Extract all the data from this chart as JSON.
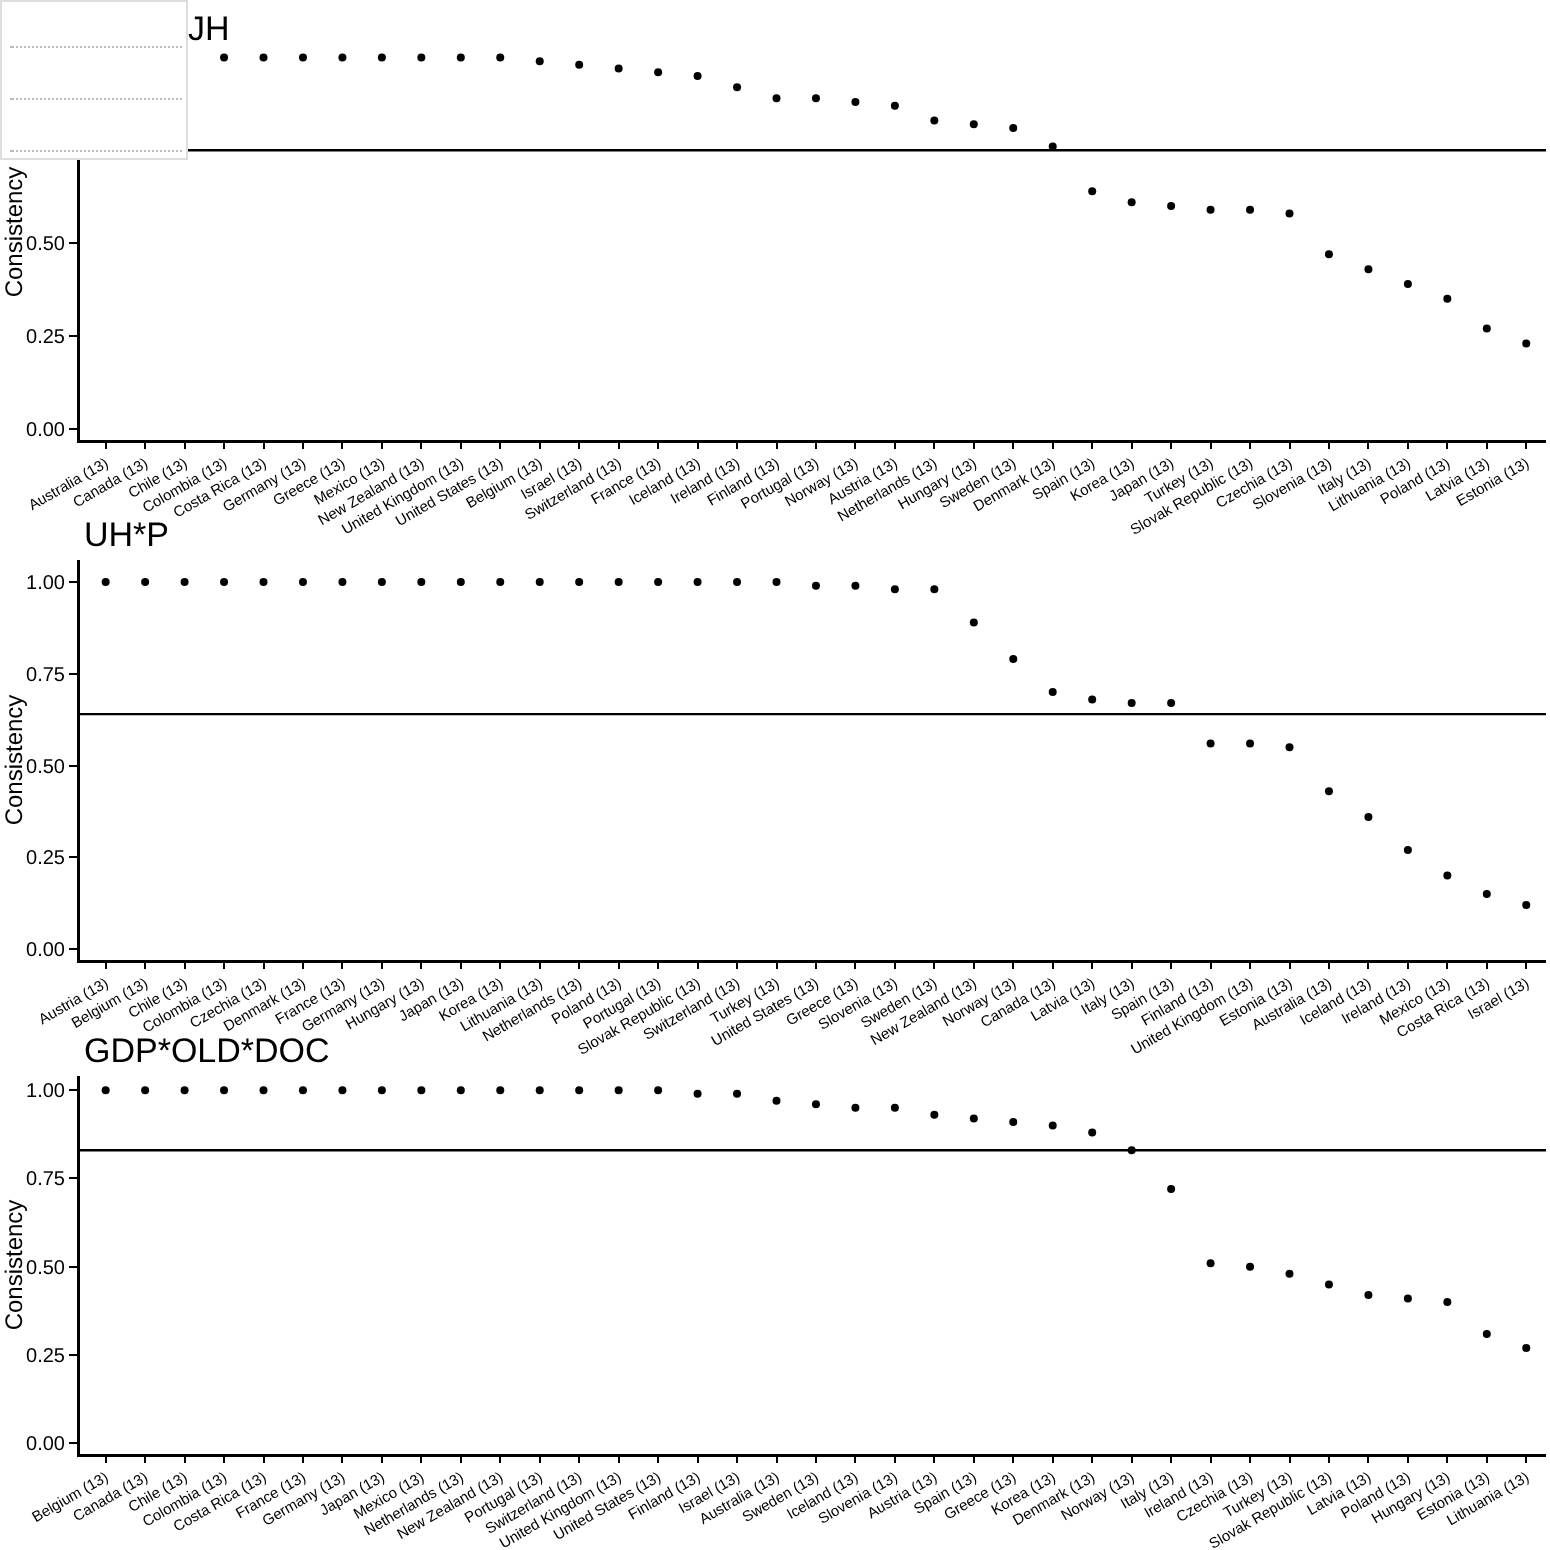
{
  "chart_data": [
    {
      "type": "scatter",
      "title": "JH",
      "ylabel": "Consistency",
      "marker": "circle",
      "grid": false,
      "categories": [
        "Australia (13)",
        "Canada (13)",
        "Chile (13)",
        "Colombia (13)",
        "Costa Rica (13)",
        "Germany (13)",
        "Greece (13)",
        "Mexico (13)",
        "New Zealand (13)",
        "United Kingdom (13)",
        "United States (13)",
        "Belgium (13)",
        "Israel (13)",
        "Switzerland (13)",
        "France (13)",
        "Iceland (13)",
        "Ireland (13)",
        "Finland (13)",
        "Portugal (13)",
        "Norway (13)",
        "Austria (13)",
        "Netherlands (13)",
        "Hungary (13)",
        "Sweden (13)",
        "Denmark (13)",
        "Spain (13)",
        "Korea (13)",
        "Japan (13)",
        "Turkey (13)",
        "Slovak Republic (13)",
        "Czechia (13)",
        "Slovenia (13)",
        "Italy (13)",
        "Lithuania (13)",
        "Poland (13)",
        "Latvia (13)",
        "Estonia (13)"
      ],
      "series": [
        {
          "color": "#000000",
          "values": [
            null,
            null,
            null,
            1.0,
            1.0,
            1.0,
            1.0,
            1.0,
            1.0,
            1.0,
            1.0,
            0.99,
            0.98,
            0.97,
            0.96,
            0.95,
            0.92,
            0.89,
            0.89,
            0.88,
            0.87,
            0.83,
            0.82,
            0.81,
            0.76,
            0.64,
            0.61,
            0.6,
            0.59,
            0.59,
            0.58,
            0.47,
            0.43,
            0.39,
            0.35,
            0.27,
            0.23
          ]
        }
      ],
      "ylim": [
        -0.03,
        1.09
      ],
      "yticks": [
        {
          "value": 0,
          "label": "0.00"
        },
        {
          "value": 0.25,
          "label": "0.25"
        },
        {
          "value": 0.5,
          "label": "0.50"
        }
      ],
      "ref_lines": [
        {
          "axis": "y",
          "value": 0.75,
          "color": "#000000"
        }
      ]
    },
    {
      "type": "scatter",
      "title": "UH*P",
      "ylabel": "Consistency",
      "marker": "circle",
      "grid": false,
      "categories": [
        "Austria (13)",
        "Belgium (13)",
        "Chile (13)",
        "Colombia (13)",
        "Czechia (13)",
        "Denmark (13)",
        "France (13)",
        "Germany (13)",
        "Hungary (13)",
        "Japan (13)",
        "Korea (13)",
        "Lithuania (13)",
        "Netherlands (13)",
        "Poland (13)",
        "Portugal (13)",
        "Slovak Republic (13)",
        "Switzerland (13)",
        "Turkey (13)",
        "United States (13)",
        "Greece (13)",
        "Slovenia (13)",
        "Sweden (13)",
        "New Zealand (13)",
        "Norway (13)",
        "Canada (13)",
        "Latvia (13)",
        "Italy (13)",
        "Spain (13)",
        "Finland (13)",
        "United Kingdom (13)",
        "Estonia (13)",
        "Australia (13)",
        "Iceland (13)",
        "Ireland (13)",
        "Mexico (13)",
        "Costa Rica (13)",
        "Israel (13)"
      ],
      "series": [
        {
          "color": "#000000",
          "values": [
            1.0,
            1.0,
            1.0,
            1.0,
            1.0,
            1.0,
            1.0,
            1.0,
            1.0,
            1.0,
            1.0,
            1.0,
            1.0,
            1.0,
            1.0,
            1.0,
            1.0,
            1.0,
            0.99,
            0.99,
            0.98,
            0.98,
            0.89,
            0.79,
            0.7,
            0.68,
            0.67,
            0.67,
            0.56,
            0.56,
            0.55,
            0.43,
            0.36,
            0.27,
            0.2,
            0.15,
            0.12
          ]
        }
      ],
      "ylim": [
        -0.03,
        1.06
      ],
      "yticks": [
        {
          "value": 0,
          "label": "0.00"
        },
        {
          "value": 0.25,
          "label": "0.25"
        },
        {
          "value": 0.5,
          "label": "0.50"
        },
        {
          "value": 0.75,
          "label": "0.75"
        },
        {
          "value": 1,
          "label": "1.00"
        }
      ],
      "ref_lines": [
        {
          "axis": "y",
          "value": 0.64,
          "color": "#000000"
        }
      ]
    },
    {
      "type": "scatter",
      "title": "GDP*OLD*DOC",
      "ylabel": "Consistency",
      "marker": "circle",
      "grid": false,
      "categories": [
        "Belgium (13)",
        "Canada (13)",
        "Chile (13)",
        "Colombia (13)",
        "Costa Rica (13)",
        "France (13)",
        "Germany (13)",
        "Japan (13)",
        "Mexico (13)",
        "Netherlands (13)",
        "New Zealand (13)",
        "Portugal (13)",
        "Switzerland (13)",
        "United Kingdom (13)",
        "United States (13)",
        "Finland (13)",
        "Israel (13)",
        "Australia (13)",
        "Sweden (13)",
        "Iceland (13)",
        "Slovenia (13)",
        "Austria (13)",
        "Spain (13)",
        "Greece (13)",
        "Korea (13)",
        "Denmark (13)",
        "Norway (13)",
        "Italy (13)",
        "Ireland (13)",
        "Czechia (13)",
        "Turkey (13)",
        "Slovak Republic (13)",
        "Latvia (13)",
        "Poland (13)",
        "Hungary (13)",
        "Estonia (13)",
        "Lithuania (13)"
      ],
      "series": [
        {
          "color": "#000000",
          "values": [
            1.0,
            1.0,
            1.0,
            1.0,
            1.0,
            1.0,
            1.0,
            1.0,
            1.0,
            1.0,
            1.0,
            1.0,
            1.0,
            1.0,
            1.0,
            0.99,
            0.99,
            0.97,
            0.96,
            0.95,
            0.95,
            0.93,
            0.92,
            0.91,
            0.9,
            0.88,
            0.83,
            0.72,
            0.51,
            0.5,
            0.48,
            0.45,
            0.42,
            0.41,
            0.4,
            0.31,
            0.27
          ]
        }
      ],
      "ylim": [
        -0.03,
        1.04
      ],
      "yticks": [
        {
          "value": 0,
          "label": "0.00"
        },
        {
          "value": 0.25,
          "label": "0.25"
        },
        {
          "value": 0.5,
          "label": "0.50"
        },
        {
          "value": 0.75,
          "label": "0.75"
        },
        {
          "value": 1,
          "label": "1.00"
        }
      ],
      "ref_lines": [
        {
          "axis": "y",
          "value": 0.83,
          "color": "#000000"
        }
      ]
    }
  ]
}
